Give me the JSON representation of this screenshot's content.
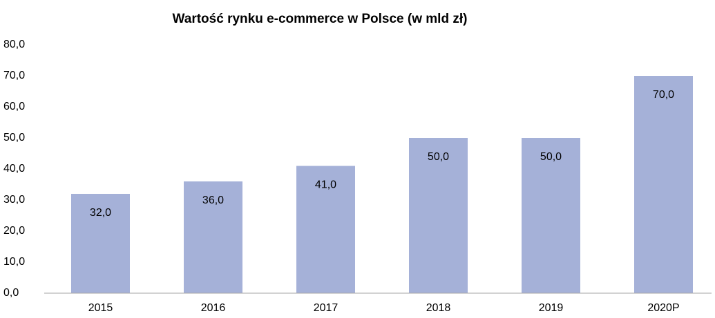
{
  "chart_data": {
    "type": "bar",
    "title": "Wartość rynku e-commerce w Polsce (w mld zł)",
    "categories": [
      "2015",
      "2016",
      "2017",
      "2018",
      "2019",
      "2020P"
    ],
    "values": [
      32,
      36,
      41,
      50,
      50,
      70
    ],
    "value_labels": [
      "32,0",
      "36,0",
      "41,0",
      "50,0",
      "50,0",
      "70,0"
    ],
    "color": "#a5b1d8",
    "ylim": [
      0,
      80
    ],
    "yticks": [
      {
        "value": 0,
        "label": "0,0"
      },
      {
        "value": 10,
        "label": "10,0"
      },
      {
        "value": 20,
        "label": "20,0"
      },
      {
        "value": 30,
        "label": "30,0"
      },
      {
        "value": 40,
        "label": "40,0"
      },
      {
        "value": 50,
        "label": "50,0"
      },
      {
        "value": 60,
        "label": "60,0"
      },
      {
        "value": 70,
        "label": "70,0"
      },
      {
        "value": 80,
        "label": "80,0"
      }
    ],
    "grid": false
  }
}
